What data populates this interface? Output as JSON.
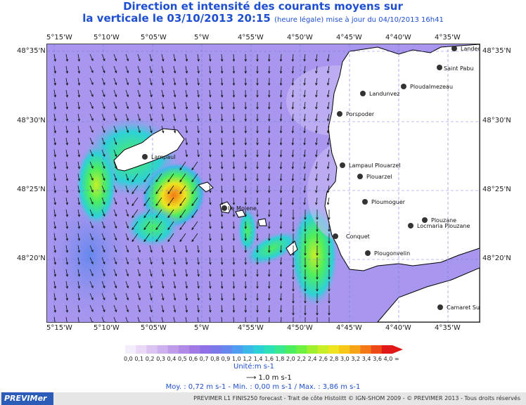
{
  "title_line1": "Direction et intensité des courants moyens sur",
  "title_line2": "la verticale le 03/10/2013 20:15",
  "title_note": "(heure légale) mise à jour du 04/10/2013 16h41",
  "lon_ticks": [
    "5°15'W",
    "5°10'W",
    "5°05'W",
    "5°W",
    "4°55'W",
    "4°50'W",
    "4°45'W",
    "4°40'W",
    "4°35'W"
  ],
  "lat_ticks": [
    "48°35'N",
    "48°30'N",
    "48°25'N",
    "48°20'N"
  ],
  "places": [
    {
      "name": "Landeda",
      "label": "Landec"
    },
    {
      "name": "Saint Pabu",
      "label": "Saint Pabu"
    },
    {
      "name": "Ploudalmezeau",
      "label": "Ploudalmezeau"
    },
    {
      "name": "Landunvez",
      "label": "Landunvez"
    },
    {
      "name": "Porspoder",
      "label": "Porspoder"
    },
    {
      "name": "Lampaul",
      "label": "Lampaul"
    },
    {
      "name": "Lampaul Plouarzel",
      "label": "Lampaul Plouarzel"
    },
    {
      "name": "Plouarzel",
      "label": "Plouarzel"
    },
    {
      "name": "Ile Molene",
      "label": "Ile Molene"
    },
    {
      "name": "Ploumoguer",
      "label": "Ploumoguer"
    },
    {
      "name": "Plouzane",
      "label": "Plouzane"
    },
    {
      "name": "Locmaria Plouzane",
      "label": "Locmaria Plouzane"
    },
    {
      "name": "Le Conquet",
      "label": "Conquet"
    },
    {
      "name": "Plougonvelin",
      "label": "Plougonvelin"
    },
    {
      "name": "Camaret Sur Mer",
      "label": "Camaret Su"
    }
  ],
  "colorbar": {
    "labels": [
      "0,0",
      "0,1",
      "0,2",
      "0,3",
      "0,4",
      "0,5",
      "0,6",
      "0,7",
      "0,8",
      "0,9",
      "1,0",
      "1,2",
      "1,4",
      "1,6",
      "1,8",
      "2,0",
      "2,2",
      "2,4",
      "2,6",
      "2,8",
      "3,0",
      "3,2",
      "3,4",
      "3,6",
      "4,0",
      "∞"
    ],
    "colors": [
      "#f4eefc",
      "#ead8f7",
      "#dcc4f2",
      "#cdb0ee",
      "#bf9cea",
      "#b08ae6",
      "#a27ae6",
      "#9070e6",
      "#7b78ea",
      "#6688ee",
      "#4f9cf0",
      "#3cb8e8",
      "#2ed0d8",
      "#2ee0b8",
      "#3ae890",
      "#4cee60",
      "#70f040",
      "#a0f030",
      "#c8ee28",
      "#eee420",
      "#f8c818",
      "#f8a418",
      "#f47818",
      "#ec4818",
      "#e01818"
    ],
    "unit": "Unité:m s-1"
  },
  "reference_arrow": "1.0 m s-1",
  "stats": "Moy. : 0,72 m s-1    -    Min. : 0,00 m s-1 / Max. : 3,86 m s-1",
  "footer_logo": "PREVIMer",
  "footer_credit": "PREVIMER L1 FINIS250 forecast - Trait de côte Histolitt © IGN-SHOM 2009 - © PREVIMER 2013 - Tous droits réservés"
}
